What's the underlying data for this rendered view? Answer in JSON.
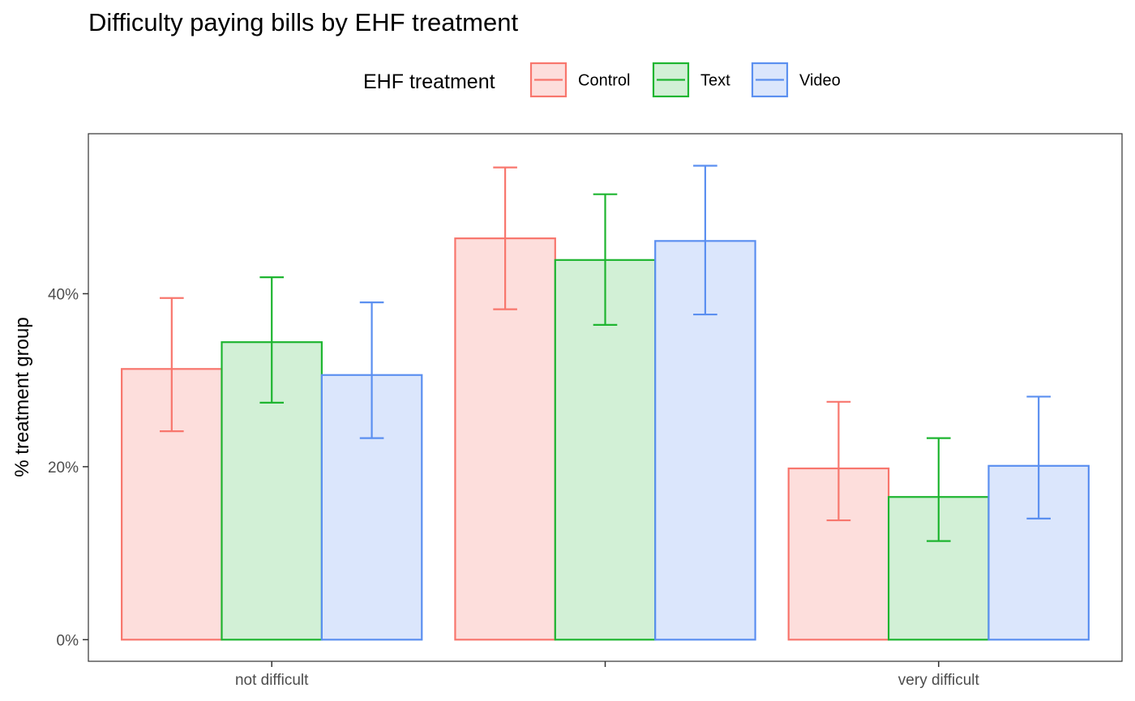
{
  "chart_data": {
    "type": "bar",
    "title": "Difficulty paying bills by EHF treatment",
    "xlabel": "",
    "ylabel": "% treatment group",
    "categories": [
      "not difficult",
      "",
      "very difficult"
    ],
    "ylim": [
      -2.5,
      58.5
    ],
    "yticks": [
      0,
      20,
      40
    ],
    "ytick_labels": [
      "0%",
      "20%",
      "40%"
    ],
    "legend_title": "EHF treatment",
    "legend_position": "top",
    "grid": false,
    "series": [
      {
        "name": "Control",
        "color": "#F8766D",
        "fill": "#FDDEDC",
        "values": [
          31.3,
          46.4,
          19.8
        ],
        "error_low": [
          24.1,
          38.2,
          13.8
        ],
        "error_high": [
          39.5,
          54.6,
          27.5
        ]
      },
      {
        "name": "Text",
        "color": "#1EB530",
        "fill": "#D2F0D6",
        "values": [
          34.4,
          43.9,
          16.5
        ],
        "error_low": [
          27.4,
          36.4,
          11.4
        ],
        "error_high": [
          41.9,
          51.5,
          23.3
        ]
      },
      {
        "name": "Video",
        "color": "#5B8FF0",
        "fill": "#DBE6FC",
        "values": [
          30.6,
          46.1,
          20.1
        ],
        "error_low": [
          23.3,
          37.6,
          14.0
        ],
        "error_high": [
          39.0,
          54.8,
          28.1
        ]
      }
    ]
  }
}
